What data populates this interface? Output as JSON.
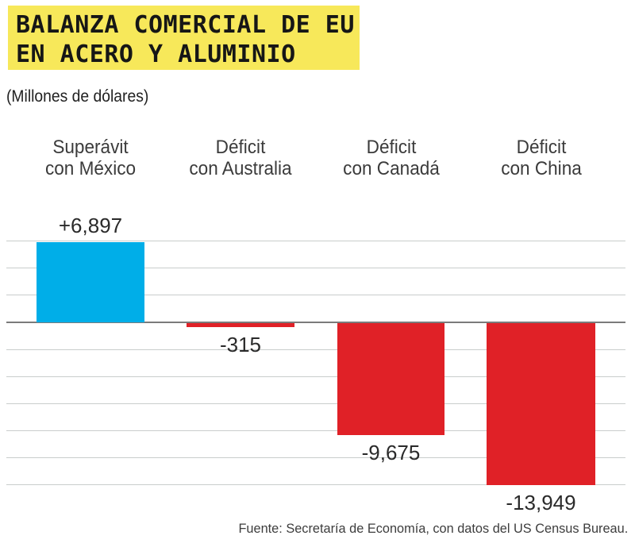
{
  "title": {
    "line1": "BALANZA COMERCIAL DE EU",
    "line2": "EN ACERO Y ALUMINIO"
  },
  "subtitle": "(Millones de dólares)",
  "source": "Fuente: Secretaría de Economía, con datos del US Census Bureau.",
  "colors": {
    "title_highlight": "#F7E85A",
    "surplus_bar": "#00AEE8",
    "deficit_bar": "#E02127",
    "gridline": "#C9CDCC",
    "axis": "#7B7B7B"
  },
  "chart_data": {
    "type": "bar",
    "title": "BALANZA COMERCIAL DE EU EN ACERO Y ALUMINIO",
    "ylabel": "(Millones de dólares)",
    "categories": [
      "Superávit con México",
      "Déficit con Australia",
      "Déficit con Canadá",
      "Déficit con China"
    ],
    "category_lines": [
      [
        "Superávit",
        "con México"
      ],
      [
        "Déficit",
        "con Australia"
      ],
      [
        "Déficit",
        "con Canadá"
      ],
      [
        "Déficit",
        "con China"
      ]
    ],
    "values": [
      6897,
      -315,
      -9675,
      -13949
    ],
    "value_labels": [
      "+6,897",
      "-315",
      "-9,675",
      "-13,949"
    ],
    "ylim": [
      -14000,
      7000
    ],
    "baseline": 0,
    "grid": true,
    "legend": false
  }
}
